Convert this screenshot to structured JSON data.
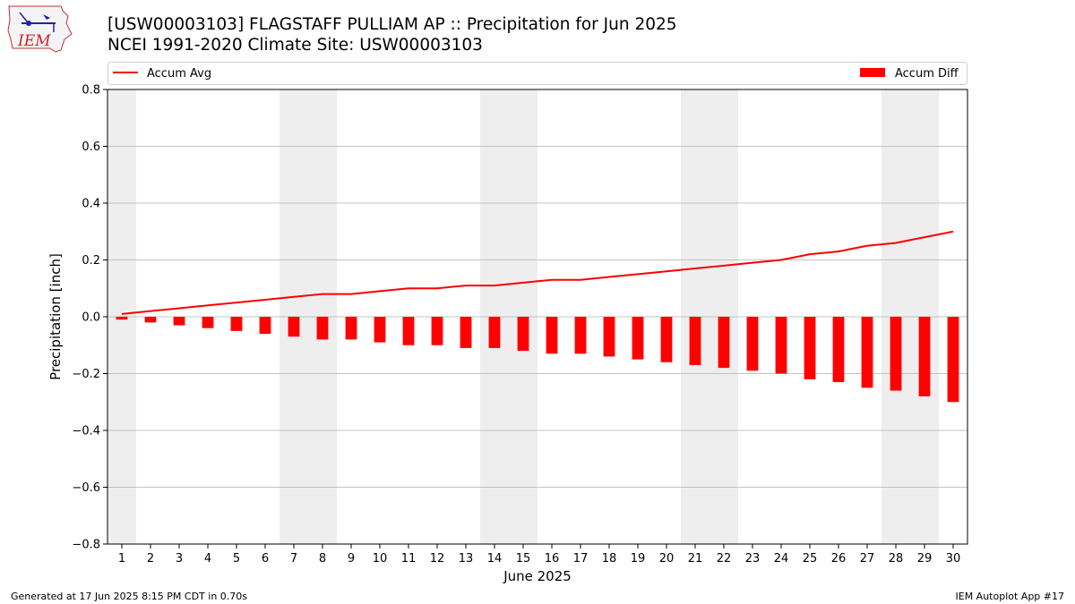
{
  "header": {
    "title_line1": "[USW00003103] FLAGSTAFF PULLIAM AP :: Precipitation for Jun 2025",
    "title_line2": "NCEI 1991-2020 Climate Site: USW00003103",
    "logo_text": "IEM"
  },
  "footer": {
    "generated": "Generated at 17 Jun 2025 8:15 PM CDT in 0.70s",
    "app": "IEM Autoplot App #17"
  },
  "colors": {
    "series": "#ff0000",
    "weekend_band": "#eeeeee",
    "grid": "#b0b0b0"
  },
  "chart_data": {
    "type": "bar",
    "title": "[USW00003103] FLAGSTAFF PULLIAM AP :: Precipitation for Jun 2025",
    "subtitle": "NCEI 1991-2020 Climate Site: USW00003103",
    "xlabel": "June 2025",
    "ylabel": "Precipitation [inch]",
    "ylim": [
      -0.8,
      0.8
    ],
    "yticks": [
      -0.8,
      -0.6,
      -0.4,
      -0.2,
      0.0,
      0.2,
      0.4,
      0.6,
      0.8
    ],
    "ytick_labels": [
      "−0.8",
      "−0.6",
      "−0.4",
      "−0.2",
      "0.0",
      "0.2",
      "0.4",
      "0.6",
      "0.8"
    ],
    "grid": true,
    "legend": "top",
    "categories": [
      1,
      2,
      3,
      4,
      5,
      6,
      7,
      8,
      9,
      10,
      11,
      12,
      13,
      14,
      15,
      16,
      17,
      18,
      19,
      20,
      21,
      22,
      23,
      24,
      25,
      26,
      27,
      28,
      29,
      30
    ],
    "weekend_days": [
      1,
      7,
      8,
      14,
      15,
      21,
      22,
      28,
      29
    ],
    "series": [
      {
        "name": "Accum Avg",
        "type": "line",
        "color": "#ff0000",
        "values": [
          0.01,
          0.02,
          0.03,
          0.04,
          0.05,
          0.06,
          0.07,
          0.08,
          0.08,
          0.09,
          0.1,
          0.1,
          0.11,
          0.11,
          0.12,
          0.13,
          0.13,
          0.14,
          0.15,
          0.16,
          0.17,
          0.18,
          0.19,
          0.2,
          0.22,
          0.23,
          0.25,
          0.26,
          0.28,
          0.3
        ]
      },
      {
        "name": "Accum Diff",
        "type": "bar",
        "color": "#ff0000",
        "values": [
          -0.01,
          -0.02,
          -0.03,
          -0.04,
          -0.05,
          -0.06,
          -0.07,
          -0.08,
          -0.08,
          -0.09,
          -0.1,
          -0.1,
          -0.11,
          -0.11,
          -0.12,
          -0.13,
          -0.13,
          -0.14,
          -0.15,
          -0.16,
          -0.17,
          -0.18,
          -0.19,
          -0.2,
          -0.22,
          -0.23,
          -0.25,
          -0.26,
          -0.28,
          -0.3
        ]
      }
    ]
  }
}
